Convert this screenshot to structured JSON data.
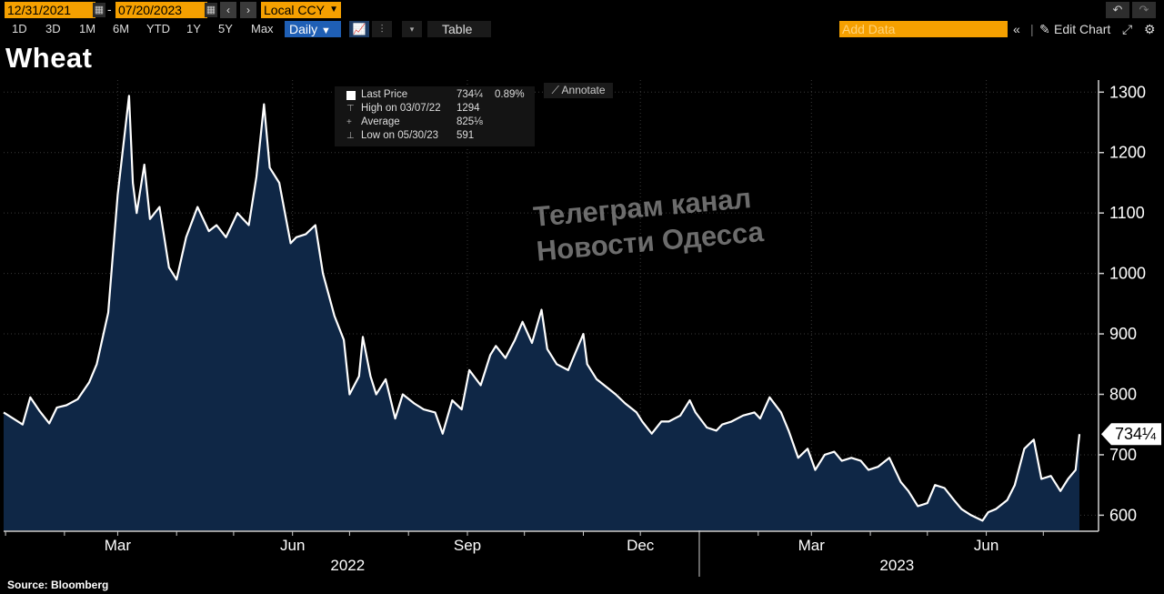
{
  "toolbar": {
    "start_date": "12/31/2021",
    "end_date": "07/20/2023",
    "date_separator": "-",
    "currency": "Local CCY",
    "ranges": [
      "1D",
      "3D",
      "1M",
      "6M",
      "YTD",
      "1Y",
      "5Y",
      "Max"
    ],
    "frequency": "Daily",
    "table_label": "Table",
    "add_data_placeholder": "Add Data",
    "edit_chart_label": "Edit Chart"
  },
  "title": "Wheat",
  "legend": {
    "last_price_label": "Last Price",
    "last_price_value": "734¼",
    "last_price_change": "0.89%",
    "high_label": "High on 03/07/22",
    "high_value": "1294",
    "average_label": "Average",
    "average_value": "825⅛",
    "low_label": "Low on 05/30/23",
    "low_value": "591"
  },
  "annotate_label": "Annotate",
  "watermark": {
    "line1": "Телеграм канал",
    "line2": "Новости Одесса"
  },
  "source": "Source:  Bloomberg",
  "last_price_tag": "734¼",
  "colors": {
    "background": "#000000",
    "area_fill": "#0f2746",
    "line": "#ffffff",
    "accent": "#f5a000",
    "frequency_button": "#1f5fb5"
  },
  "chart_data": {
    "type": "area",
    "series": [
      {
        "name": "Last Price",
        "points": [
          [
            "2021-12-31",
            770
          ],
          [
            "2022-01-05",
            760
          ],
          [
            "2022-01-10",
            750
          ],
          [
            "2022-01-14",
            795
          ],
          [
            "2022-01-19",
            772
          ],
          [
            "2022-01-24",
            752
          ],
          [
            "2022-01-28",
            778
          ],
          [
            "2022-02-02",
            782
          ],
          [
            "2022-02-08",
            792
          ],
          [
            "2022-02-14",
            820
          ],
          [
            "2022-02-18",
            850
          ],
          [
            "2022-02-24",
            935
          ],
          [
            "2022-03-01",
            1130
          ],
          [
            "2022-03-07",
            1294
          ],
          [
            "2022-03-09",
            1150
          ],
          [
            "2022-03-11",
            1100
          ],
          [
            "2022-03-15",
            1180
          ],
          [
            "2022-03-18",
            1090
          ],
          [
            "2022-03-23",
            1110
          ],
          [
            "2022-03-28",
            1010
          ],
          [
            "2022-04-01",
            990
          ],
          [
            "2022-04-06",
            1060
          ],
          [
            "2022-04-12",
            1110
          ],
          [
            "2022-04-18",
            1070
          ],
          [
            "2022-04-22",
            1080
          ],
          [
            "2022-04-27",
            1060
          ],
          [
            "2022-05-03",
            1100
          ],
          [
            "2022-05-09",
            1080
          ],
          [
            "2022-05-13",
            1160
          ],
          [
            "2022-05-17",
            1280
          ],
          [
            "2022-05-20",
            1175
          ],
          [
            "2022-05-25",
            1150
          ],
          [
            "2022-05-31",
            1050
          ],
          [
            "2022-06-03",
            1060
          ],
          [
            "2022-06-08",
            1065
          ],
          [
            "2022-06-13",
            1080
          ],
          [
            "2022-06-17",
            1000
          ],
          [
            "2022-06-23",
            930
          ],
          [
            "2022-06-28",
            890
          ],
          [
            "2022-07-01",
            800
          ],
          [
            "2022-07-06",
            830
          ],
          [
            "2022-07-08",
            895
          ],
          [
            "2022-07-12",
            830
          ],
          [
            "2022-07-15",
            800
          ],
          [
            "2022-07-20",
            825
          ],
          [
            "2022-07-25",
            760
          ],
          [
            "2022-07-29",
            800
          ],
          [
            "2022-08-04",
            785
          ],
          [
            "2022-08-09",
            775
          ],
          [
            "2022-08-15",
            770
          ],
          [
            "2022-08-19",
            735
          ],
          [
            "2022-08-24",
            790
          ],
          [
            "2022-08-29",
            775
          ],
          [
            "2022-09-02",
            840
          ],
          [
            "2022-09-08",
            815
          ],
          [
            "2022-09-13",
            865
          ],
          [
            "2022-09-16",
            880
          ],
          [
            "2022-09-21",
            860
          ],
          [
            "2022-09-26",
            890
          ],
          [
            "2022-09-30",
            920
          ],
          [
            "2022-10-05",
            885
          ],
          [
            "2022-10-10",
            940
          ],
          [
            "2022-10-13",
            875
          ],
          [
            "2022-10-18",
            850
          ],
          [
            "2022-10-24",
            840
          ],
          [
            "2022-10-28",
            870
          ],
          [
            "2022-11-01",
            900
          ],
          [
            "2022-11-03",
            850
          ],
          [
            "2022-11-08",
            825
          ],
          [
            "2022-11-14",
            810
          ],
          [
            "2022-11-18",
            800
          ],
          [
            "2022-11-23",
            785
          ],
          [
            "2022-11-29",
            770
          ],
          [
            "2022-12-02",
            755
          ],
          [
            "2022-12-07",
            735
          ],
          [
            "2022-12-12",
            755
          ],
          [
            "2022-12-16",
            755
          ],
          [
            "2022-12-22",
            765
          ],
          [
            "2022-12-27",
            790
          ],
          [
            "2022-12-30",
            770
          ],
          [
            "2023-01-05",
            745
          ],
          [
            "2023-01-10",
            740
          ],
          [
            "2023-01-13",
            750
          ],
          [
            "2023-01-18",
            755
          ],
          [
            "2023-01-24",
            765
          ],
          [
            "2023-01-30",
            770
          ],
          [
            "2023-02-02",
            760
          ],
          [
            "2023-02-07",
            795
          ],
          [
            "2023-02-13",
            770
          ],
          [
            "2023-02-17",
            740
          ],
          [
            "2023-02-22",
            695
          ],
          [
            "2023-02-27",
            710
          ],
          [
            "2023-03-03",
            675
          ],
          [
            "2023-03-08",
            700
          ],
          [
            "2023-03-13",
            705
          ],
          [
            "2023-03-17",
            690
          ],
          [
            "2023-03-22",
            695
          ],
          [
            "2023-03-27",
            690
          ],
          [
            "2023-03-31",
            675
          ],
          [
            "2023-04-05",
            680
          ],
          [
            "2023-04-11",
            695
          ],
          [
            "2023-04-17",
            655
          ],
          [
            "2023-04-21",
            640
          ],
          [
            "2023-04-26",
            615
          ],
          [
            "2023-05-01",
            620
          ],
          [
            "2023-05-05",
            650
          ],
          [
            "2023-05-10",
            645
          ],
          [
            "2023-05-15",
            625
          ],
          [
            "2023-05-19",
            610
          ],
          [
            "2023-05-24",
            600
          ],
          [
            "2023-05-30",
            591
          ],
          [
            "2023-06-02",
            605
          ],
          [
            "2023-06-06",
            610
          ],
          [
            "2023-06-12",
            625
          ],
          [
            "2023-06-16",
            650
          ],
          [
            "2023-06-21",
            710
          ],
          [
            "2023-06-26",
            725
          ],
          [
            "2023-06-30",
            660
          ],
          [
            "2023-07-05",
            665
          ],
          [
            "2023-07-10",
            640
          ],
          [
            "2023-07-14",
            660
          ],
          [
            "2023-07-18",
            675
          ],
          [
            "2023-07-20",
            734.25
          ]
        ]
      }
    ],
    "x_range": [
      "2021-12-31",
      "2023-07-20"
    ],
    "x_ticks": [
      {
        "date": "2022-03-01",
        "label": "Mar"
      },
      {
        "date": "2022-06-01",
        "label": "Jun"
      },
      {
        "date": "2022-09-01",
        "label": "Sep"
      },
      {
        "date": "2022-12-01",
        "label": "Dec"
      },
      {
        "date": "2023-03-01",
        "label": "Mar"
      },
      {
        "date": "2023-06-01",
        "label": "Jun"
      }
    ],
    "year_labels": [
      {
        "date": "2022-06-30",
        "label": "2022"
      },
      {
        "date": "2023-04-15",
        "label": "2023"
      }
    ],
    "year_divider": "2023-01-01",
    "y_ticks": [
      600,
      700,
      800,
      900,
      1000,
      1100,
      1200,
      1300
    ],
    "ylim": [
      575,
      1320
    ],
    "y_axis_side": "right",
    "grid": "dotted, both axes",
    "legend_position": "top-left"
  }
}
